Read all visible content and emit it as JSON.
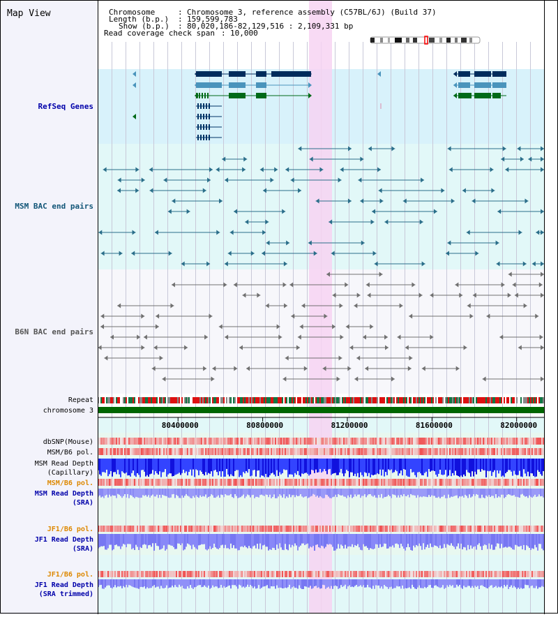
{
  "title": "Map View",
  "header": {
    "chromosome_label": "Chromosome",
    "chromosome_value": "Chromosome 3, reference assembly (C57BL/6J) (Build 37)",
    "length_label": "Length (b.p.)",
    "length_value": "159,599,783",
    "show_label": "Show (b.p.)",
    "show_value": "80,020,186-82,129,516 : 2,109,331 bp",
    "coverage_label": "Read coverage check span",
    "coverage_value": "10,000"
  },
  "ruler": {
    "ticks": [
      "80400000",
      "80800000",
      "81200000",
      "81600000",
      "82000000"
    ],
    "tick_values": [
      80400000,
      80800000,
      81200000,
      81600000,
      82000000
    ],
    "view_start": 80020186,
    "view_end": 82129516
  },
  "tracks": {
    "refseq": "RefSeq Genes",
    "msm_bac": "MSM BAC end pairs",
    "b6n_bac": "B6N BAC end pairs",
    "repeat": "Repeat",
    "chromosome": "chromosome 3",
    "dbsnp": "dbSNP(Mouse)",
    "msm_b6_pol_1": "MSM/B6 pol.",
    "msm_read_depth_cap_1": "MSM Read Depth",
    "msm_read_depth_cap_2": "(Capillary)",
    "msm_b6_pol_2": "MSM/B6 pol.",
    "msm_read_depth_sra_1": "MSM Read Depth",
    "msm_read_depth_sra_2": "(SRA)",
    "jf1_b6_pol_1": "JF1/B6 pol.",
    "jf1_read_depth_sra_1": "JF1 Read Depth",
    "jf1_read_depth_sra_2": "(SRA)",
    "jf1_b6_pol_2": "JF1/B6 pol.",
    "jf1_read_depth_trim_1": "JF1 Read Depth",
    "jf1_read_depth_trim_2": "(SRA trimmed)"
  },
  "colors": {
    "refseq_bg": "#d8f2fb",
    "msm_bac_bg": "#e2f8f8",
    "b6n_bac_bg": "#f7f7fb",
    "depth_bg": "#e8f8f0",
    "highlight": "#f7d4f2",
    "gene_dark": "#002c5c",
    "gene_mid": "#4a94bc",
    "gene_green": "#006a18",
    "msm_pair": "#2a6e8a",
    "b6n_pair": "#707070",
    "chromosome_bar": "#006600",
    "depth_dark": "#2222ee",
    "depth_light": "#8888f8",
    "label_blue": "#0000aa",
    "label_orange": "#dd8800",
    "label_teal": "#115577"
  }
}
